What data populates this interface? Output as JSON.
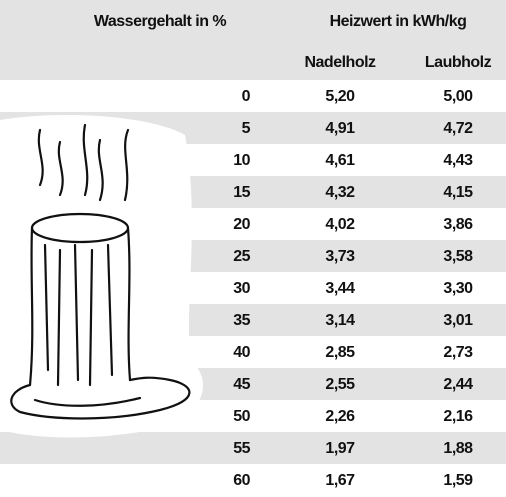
{
  "table": {
    "header": {
      "water": "Wassergehalt in %",
      "heat": "Heizwert in kWh/kg",
      "col1": "Nadelholz",
      "col2": "Laubholz"
    },
    "rows": [
      [
        "0",
        "5,20",
        "5,00"
      ],
      [
        "5",
        "4,91",
        "4,72"
      ],
      [
        "10",
        "4,61",
        "4,43"
      ],
      [
        "15",
        "4,32",
        "4,15"
      ],
      [
        "20",
        "4,02",
        "3,86"
      ],
      [
        "25",
        "3,73",
        "3,58"
      ],
      [
        "30",
        "3,44",
        "3,30"
      ],
      [
        "35",
        "3,14",
        "3,01"
      ],
      [
        "40",
        "2,85",
        "2,73"
      ],
      [
        "45",
        "2,55",
        "2,44"
      ],
      [
        "50",
        "2,26",
        "2,16"
      ],
      [
        "55",
        "1,97",
        "1,88"
      ],
      [
        "60",
        "1,67",
        "1,59"
      ]
    ]
  }
}
